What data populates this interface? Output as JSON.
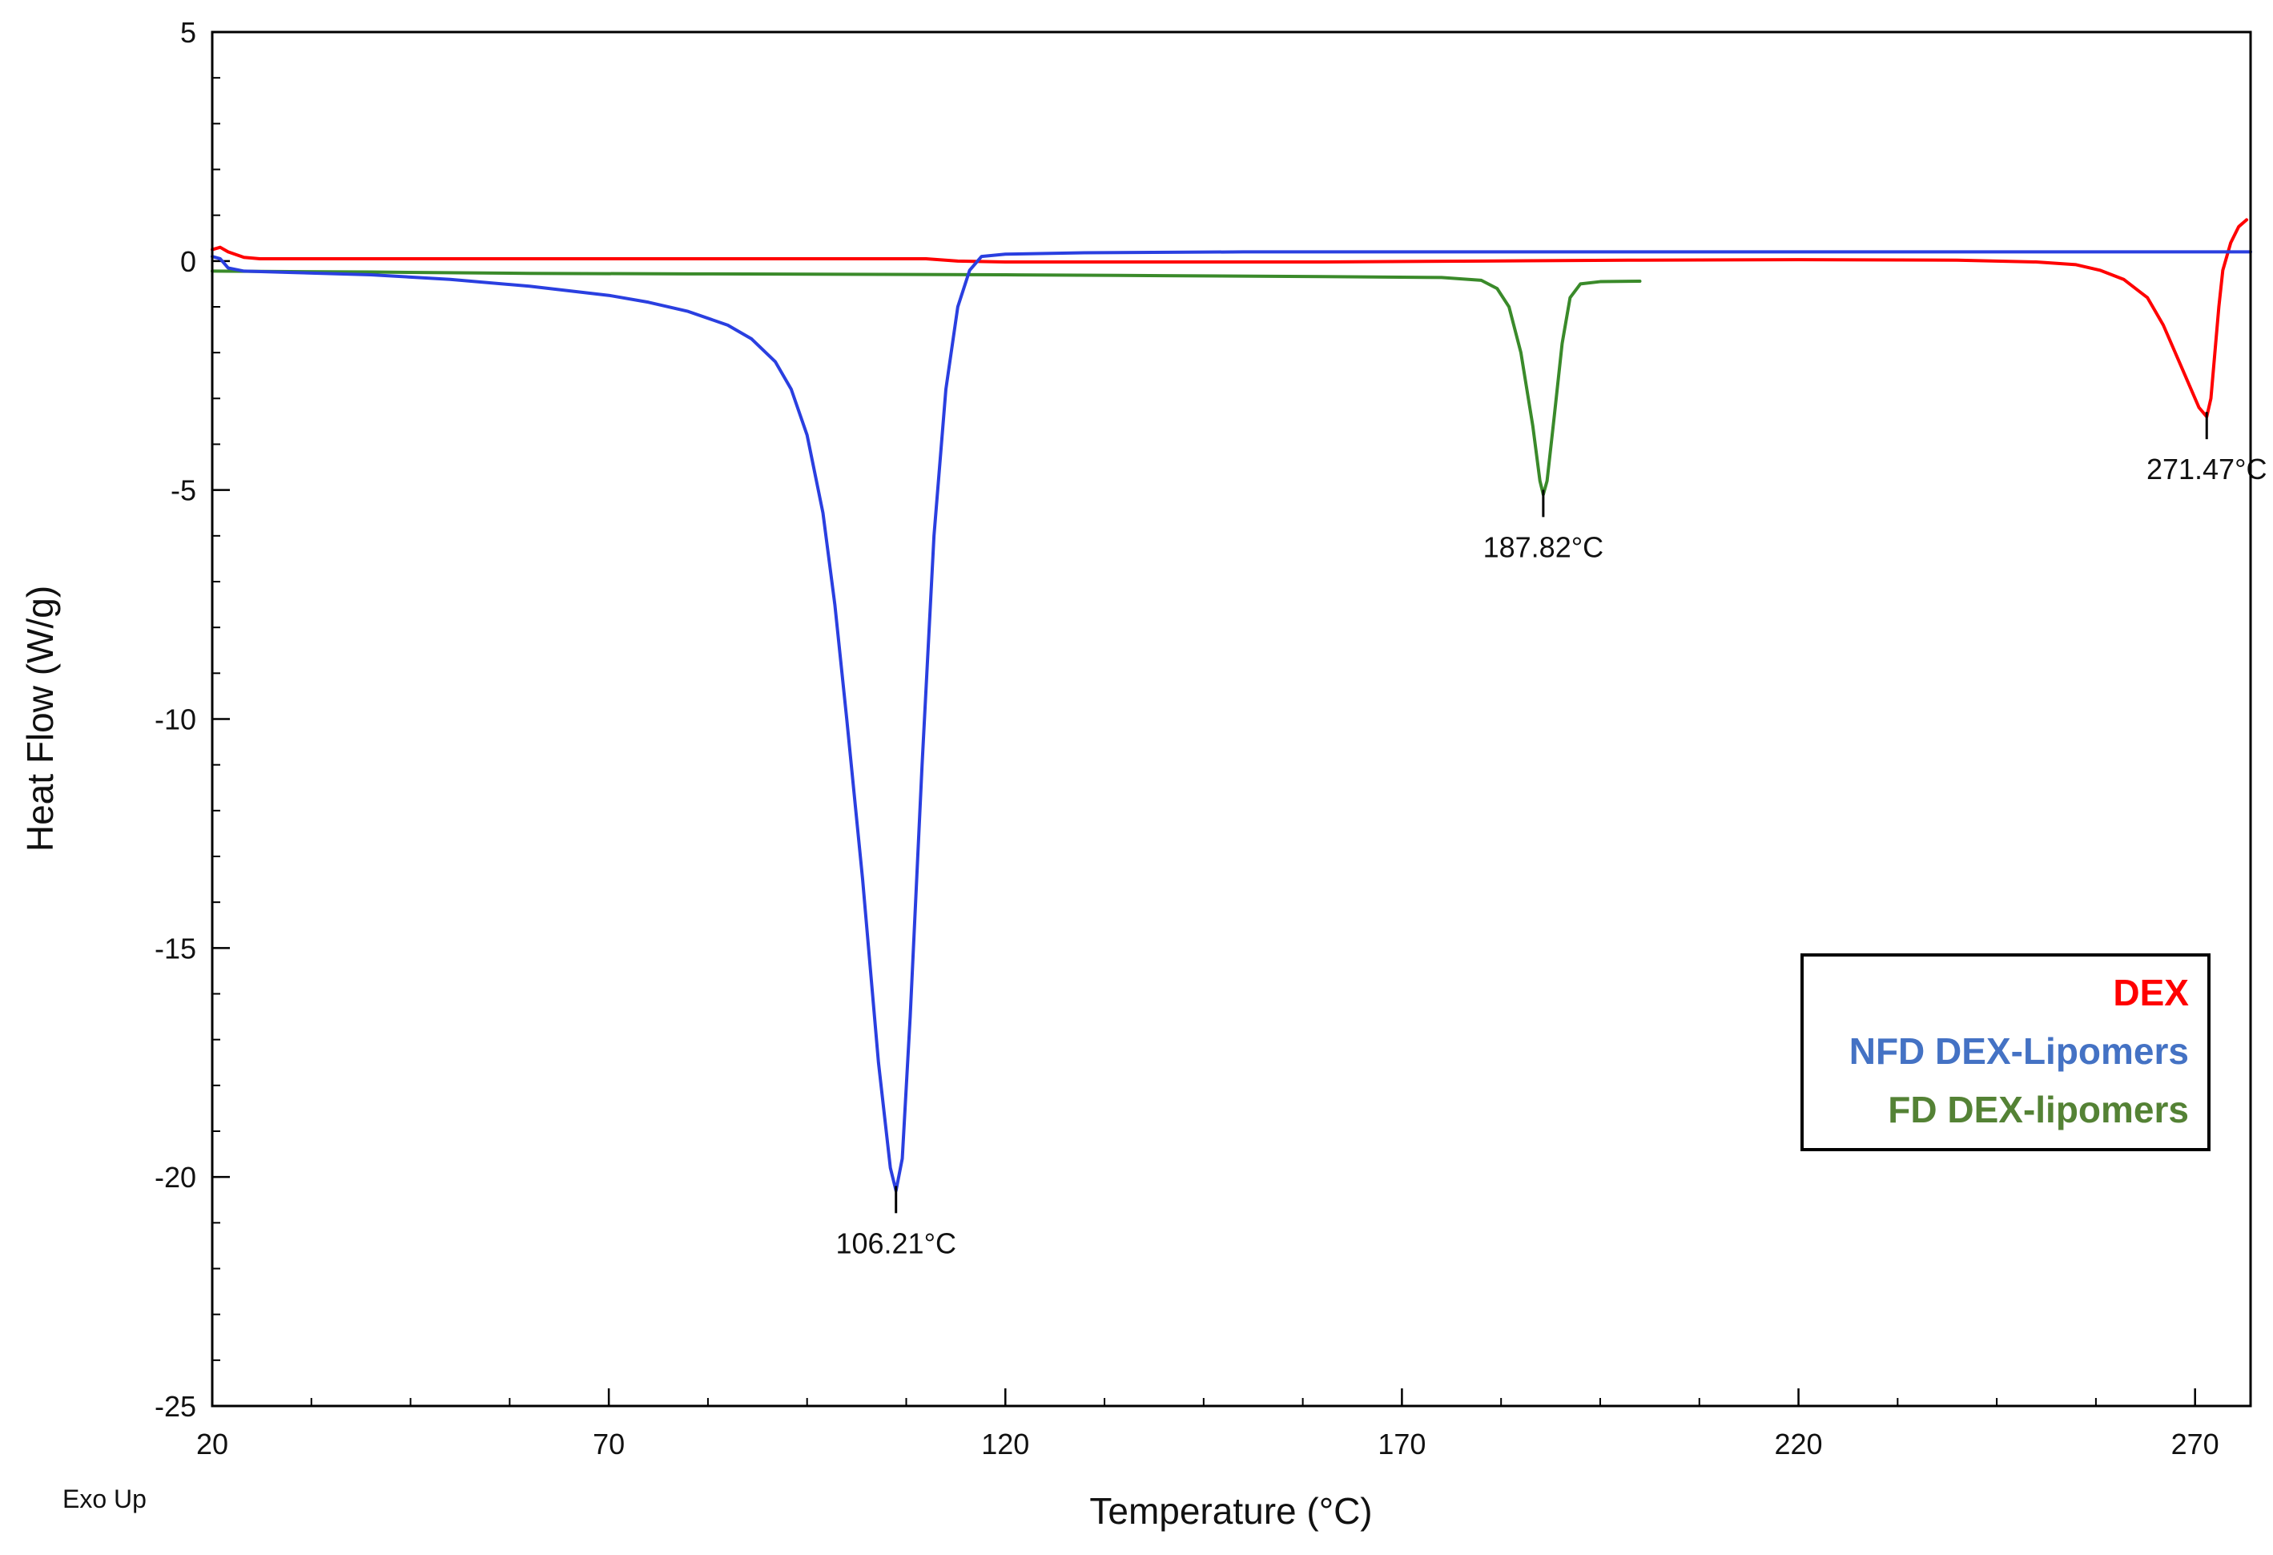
{
  "chart_data": {
    "type": "line",
    "title": "",
    "xlabel": "Temperature (°C)",
    "ylabel": "Heat Flow (W/g)",
    "footnote": "Exo Up",
    "xlim": [
      20,
      277
    ],
    "ylim": [
      -25,
      5
    ],
    "x_ticks": [
      20,
      70,
      120,
      170,
      220,
      270
    ],
    "x_tick_labels": [
      "20",
      "70",
      "120",
      "170",
      "220",
      "270"
    ],
    "y_ticks": [
      5,
      0,
      -5,
      -10,
      -15,
      -20,
      -25
    ],
    "y_tick_labels": [
      "5",
      "0",
      "-5",
      "-10",
      "-15",
      "-20",
      "-25"
    ],
    "x_minor_step": 12.5,
    "y_minor_step": 1,
    "legend": {
      "placement": "bottom-right",
      "entries": [
        {
          "label": "DEX",
          "color": "#ff0000"
        },
        {
          "label": "NFD DEX-Lipomers",
          "color": "#4472c4"
        },
        {
          "label": "FD DEX-lipomers",
          "color": "#548235"
        }
      ]
    },
    "series": [
      {
        "name": "DEX",
        "color": "#ff0000",
        "points": [
          [
            20,
            0.25
          ],
          [
            21,
            0.3
          ],
          [
            22,
            0.2
          ],
          [
            24,
            0.08
          ],
          [
            26,
            0.05
          ],
          [
            40,
            0.05
          ],
          [
            60,
            0.05
          ],
          [
            80,
            0.05
          ],
          [
            100,
            0.05
          ],
          [
            110,
            0.05
          ],
          [
            114,
            0.0
          ],
          [
            120,
            -0.02
          ],
          [
            140,
            -0.02
          ],
          [
            160,
            -0.02
          ],
          [
            180,
            0.0
          ],
          [
            200,
            0.02
          ],
          [
            220,
            0.03
          ],
          [
            240,
            0.02
          ],
          [
            250,
            -0.02
          ],
          [
            255,
            -0.08
          ],
          [
            258,
            -0.2
          ],
          [
            261,
            -0.4
          ],
          [
            264,
            -0.8
          ],
          [
            266,
            -1.4
          ],
          [
            268,
            -2.2
          ],
          [
            269.5,
            -2.8
          ],
          [
            270.5,
            -3.2
          ],
          [
            271.47,
            -3.4
          ],
          [
            272,
            -3.0
          ],
          [
            272.5,
            -2.0
          ],
          [
            273,
            -1.0
          ],
          [
            273.5,
            -0.2
          ],
          [
            274.5,
            0.4
          ],
          [
            275.5,
            0.75
          ],
          [
            276.5,
            0.9
          ]
        ]
      },
      {
        "name": "NFD DEX-Lipomers",
        "color": "#2a3fe0",
        "points": [
          [
            20,
            0.1
          ],
          [
            21,
            0.05
          ],
          [
            22,
            -0.15
          ],
          [
            24,
            -0.22
          ],
          [
            30,
            -0.25
          ],
          [
            40,
            -0.3
          ],
          [
            50,
            -0.4
          ],
          [
            60,
            -0.55
          ],
          [
            70,
            -0.75
          ],
          [
            75,
            -0.9
          ],
          [
            80,
            -1.1
          ],
          [
            85,
            -1.4
          ],
          [
            88,
            -1.7
          ],
          [
            91,
            -2.2
          ],
          [
            93,
            -2.8
          ],
          [
            95,
            -3.8
          ],
          [
            97,
            -5.5
          ],
          [
            98.5,
            -7.5
          ],
          [
            100,
            -10.0
          ],
          [
            102,
            -13.5
          ],
          [
            104,
            -17.5
          ],
          [
            105.5,
            -19.8
          ],
          [
            106.21,
            -20.3
          ],
          [
            107,
            -19.6
          ],
          [
            108,
            -16.5
          ],
          [
            109.5,
            -11.0
          ],
          [
            111,
            -6.0
          ],
          [
            112.5,
            -2.8
          ],
          [
            114,
            -1.0
          ],
          [
            115.5,
            -0.2
          ],
          [
            117,
            0.1
          ],
          [
            120,
            0.15
          ],
          [
            130,
            0.18
          ],
          [
            150,
            0.2
          ],
          [
            180,
            0.2
          ],
          [
            210,
            0.2
          ],
          [
            240,
            0.2
          ],
          [
            260,
            0.2
          ],
          [
            277,
            0.2
          ]
        ]
      },
      {
        "name": "FD DEX-lipomers",
        "color": "#3a8a2a",
        "points": [
          [
            20,
            -0.22
          ],
          [
            40,
            -0.24
          ],
          [
            60,
            -0.27
          ],
          [
            80,
            -0.28
          ],
          [
            100,
            -0.29
          ],
          [
            120,
            -0.3
          ],
          [
            140,
            -0.32
          ],
          [
            160,
            -0.34
          ],
          [
            175,
            -0.36
          ],
          [
            180,
            -0.42
          ],
          [
            182,
            -0.6
          ],
          [
            183.5,
            -1.0
          ],
          [
            185,
            -2.0
          ],
          [
            186.5,
            -3.6
          ],
          [
            187.4,
            -4.8
          ],
          [
            187.82,
            -5.1
          ],
          [
            188.3,
            -4.8
          ],
          [
            189.2,
            -3.4
          ],
          [
            190.2,
            -1.8
          ],
          [
            191.2,
            -0.8
          ],
          [
            192.5,
            -0.5
          ],
          [
            195,
            -0.45
          ],
          [
            200,
            -0.44
          ]
        ]
      }
    ],
    "annotations": [
      {
        "label": "106.21°C",
        "x": 106.21,
        "y": -20.3,
        "color": "#2a3fe0"
      },
      {
        "label": "187.82°C",
        "x": 187.82,
        "y": -5.1,
        "color": "#3a8a2a"
      },
      {
        "label": "271.47°C",
        "x": 271.47,
        "y": -3.4,
        "color": "#ff0000"
      }
    ]
  }
}
